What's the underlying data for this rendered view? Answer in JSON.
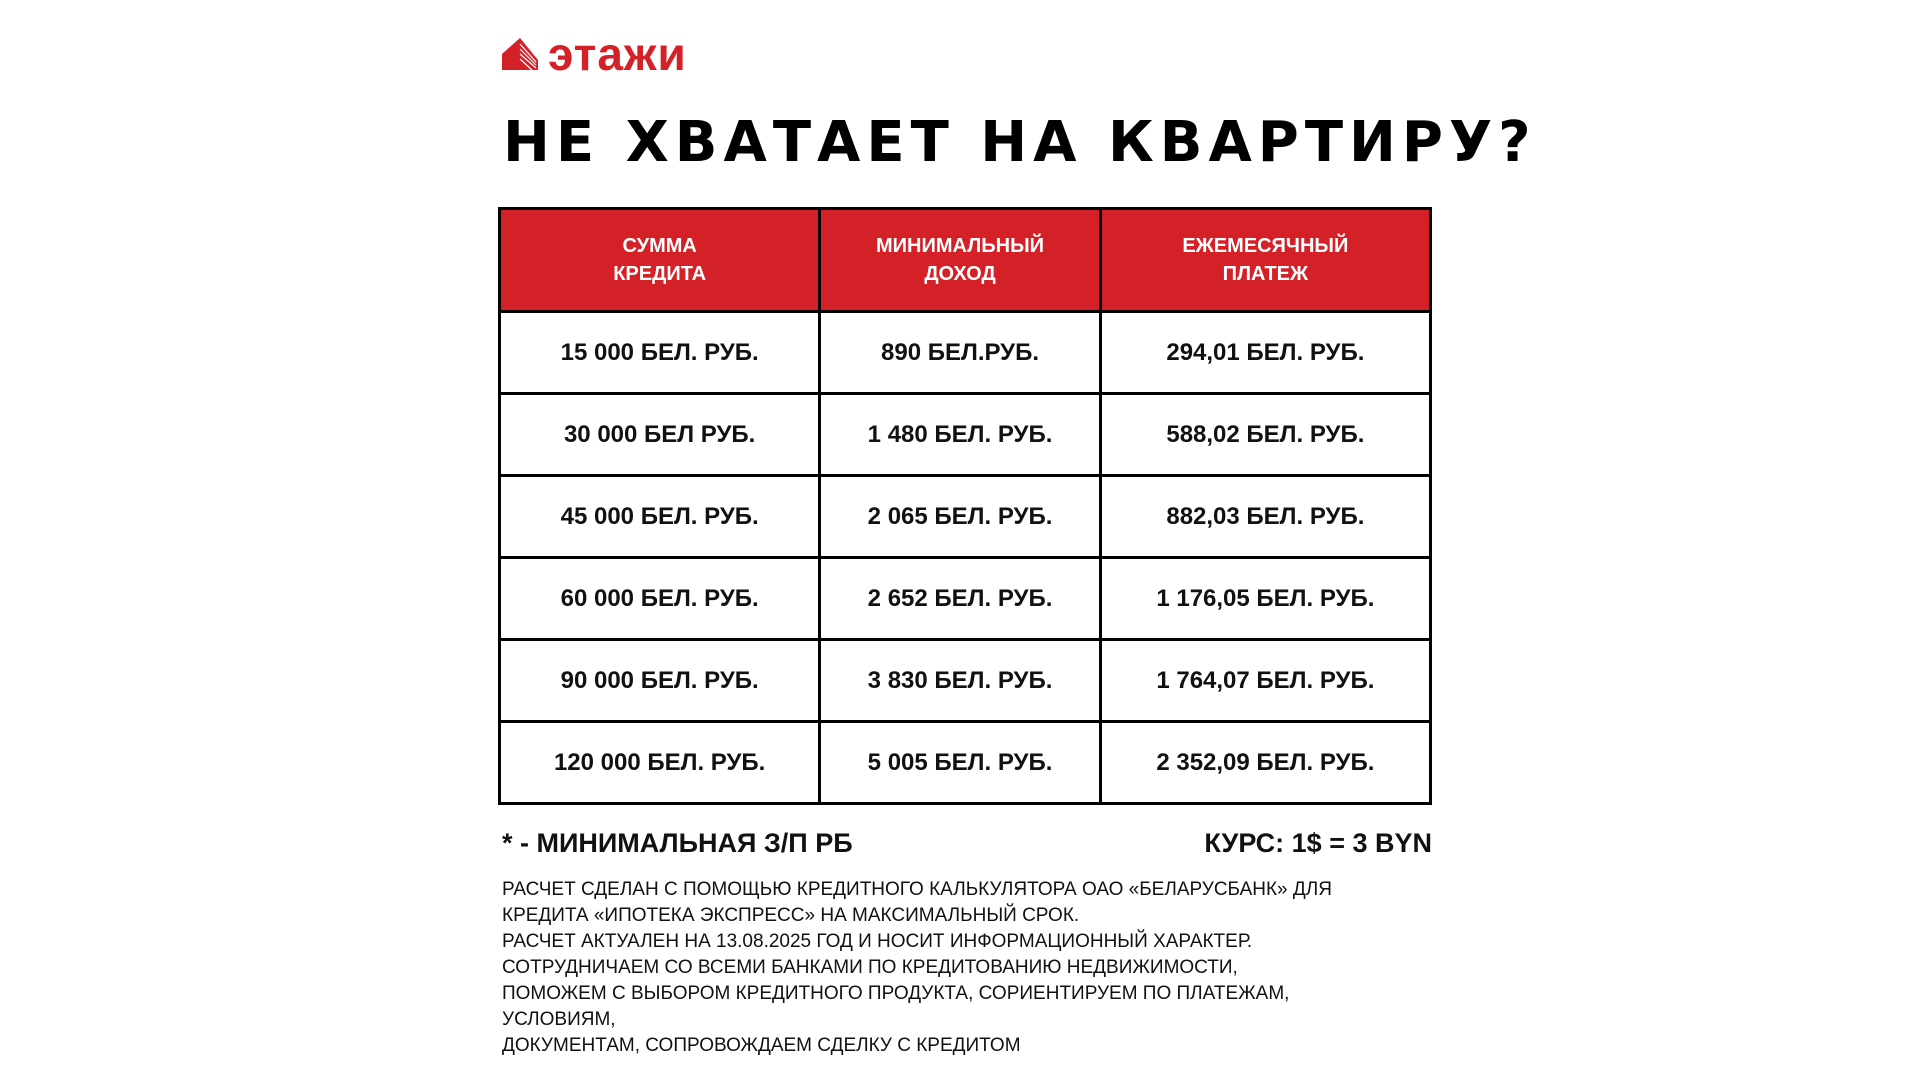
{
  "brand": {
    "name": "этажи",
    "color": "#d42027",
    "icon": "building-icon"
  },
  "title": "НЕ ХВАТАЕТ НА КВАРТИРУ?",
  "table": {
    "headers": [
      [
        "СУММА",
        "КРЕДИТА"
      ],
      [
        "МИНИМАЛЬНЫЙ",
        "ДОХОД"
      ],
      [
        "ЕЖЕМЕСЯЧНЫЙ",
        "ПЛАТЕЖ"
      ]
    ],
    "rows": [
      [
        "15 000 БЕЛ. РУБ.",
        "890 БЕЛ.РУБ.",
        "294,01 БЕЛ. РУБ."
      ],
      [
        "30 000 БЕЛ РУБ.",
        "1 480 БЕЛ. РУБ.",
        "588,02 БЕЛ. РУБ."
      ],
      [
        "45 000 БЕЛ. РУБ.",
        "2 065 БЕЛ. РУБ.",
        "882,03 БЕЛ. РУБ."
      ],
      [
        "60 000 БЕЛ. РУБ.",
        "2 652 БЕЛ. РУБ.",
        "1 176,05 БЕЛ. РУБ."
      ],
      [
        "90 000 БЕЛ. РУБ.",
        "3 830 БЕЛ. РУБ.",
        "1 764,07 БЕЛ. РУБ."
      ],
      [
        "120 000 БЕЛ. РУБ.",
        "5 005 БЕЛ. РУБ.",
        "2 352,09 БЕЛ. РУБ."
      ]
    ]
  },
  "notes": {
    "min_wage": "* - МИНИМАЛЬНАЯ З/П РБ",
    "rate": "КУРС: 1$ = 3 BYN"
  },
  "disclaimer": [
    "РАСЧЕТ СДЕЛАН С ПОМОЩЬЮ КРЕДИТНОГО КАЛЬКУЛЯТОРА ОАО «БЕЛАРУСБАНК» ДЛЯ",
    "КРЕДИТА «ИПОТЕКА ЭКСПРЕСС» НА МАКСИМАЛЬНЫЙ СРОК.",
    "РАСЧЕТ АКТУАЛЕН НА 13.08.2025 ГОД И НОСИТ ИНФОРМАЦИОННЫЙ ХАРАКТЕР.",
    "СОТРУДНИЧАЕМ СО ВСЕМИ БАНКАМИ ПО КРЕДИТОВАНИЮ НЕДВИЖИМОСТИ,",
    "ПОМОЖЕМ С ВЫБОРОМ КРЕДИТНОГО ПРОДУКТА, СОРИЕНТИРУЕМ ПО ПЛАТЕЖАМ,",
    "УСЛОВИЯМ,",
    "ДОКУМЕНТАМ, СОПРОВОЖДАЕМ СДЕЛКУ С КРЕДИТОМ"
  ]
}
